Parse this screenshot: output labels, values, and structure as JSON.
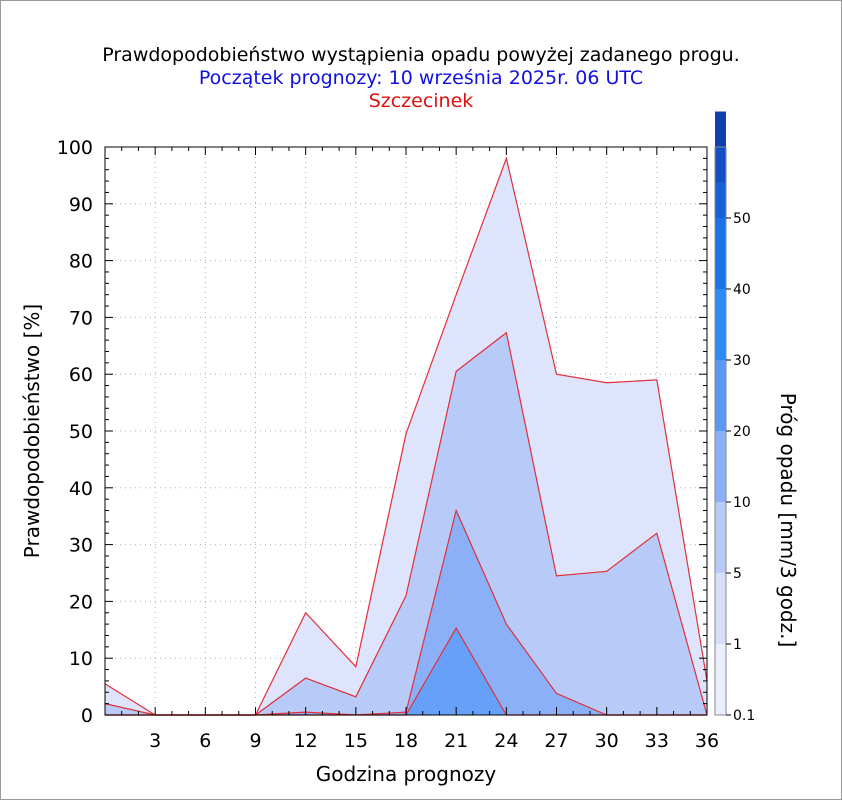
{
  "chart_data": {
    "type": "area",
    "title": "Prawdopodobieństwo wystąpienia opadu powyżej zadanego progu.",
    "subtitle": "Początek prognozy: 10 września 2025r. 06 UTC",
    "location": "Szczecinek",
    "xlabel": "Godzina prognozy",
    "ylabel": "Prawdopodobieństwo [%]",
    "colorbar_label": "Próg opadu [mm/3 godz.]",
    "x": [
      0,
      3,
      6,
      9,
      12,
      15,
      18,
      21,
      24,
      27,
      30,
      33,
      36
    ],
    "x_ticks": [
      "3",
      "6",
      "9",
      "12",
      "15",
      "18",
      "21",
      "24",
      "27",
      "30",
      "33",
      "36"
    ],
    "xlim": [
      0,
      36
    ],
    "ylim": [
      0,
      100
    ],
    "y_ticks": [
      "0",
      "10",
      "20",
      "30",
      "40",
      "50",
      "60",
      "70",
      "80",
      "90",
      "100"
    ],
    "grid": true,
    "series": [
      {
        "name": "0.1",
        "color": "#dde4fb",
        "values": [
          5.5,
          0,
          0,
          0,
          18,
          8.5,
          49.5,
          74,
          98,
          60,
          58.5,
          59,
          6
        ]
      },
      {
        "name": "1",
        "color": "#b8caf8",
        "values": [
          2,
          0,
          0,
          0,
          6.5,
          3.2,
          21,
          60.5,
          67.3,
          24.5,
          25.3,
          32,
          0
        ]
      },
      {
        "name": "5",
        "color": "#8cb0f8",
        "values": [
          0,
          0,
          0,
          0,
          0.5,
          0,
          0.5,
          36,
          16,
          3.8,
          0,
          0,
          0
        ]
      },
      {
        "name": "10",
        "color": "#66a0f8",
        "values": [
          0,
          0,
          0,
          0,
          0,
          0,
          0,
          15.3,
          0,
          0,
          0,
          0,
          0
        ]
      }
    ],
    "colorbar": {
      "ticks": [
        "0.1",
        "1",
        "5",
        "10",
        "20",
        "30",
        "40",
        "50"
      ],
      "colors": [
        "#ebeefc",
        "#d6dffa",
        "#b8caf8",
        "#8cb0f8",
        "#5a98f4",
        "#2a8cf4",
        "#1a72e8",
        "#1660d8",
        "#1350c8",
        "#1040b0"
      ]
    },
    "line_color": "#e0303a"
  }
}
